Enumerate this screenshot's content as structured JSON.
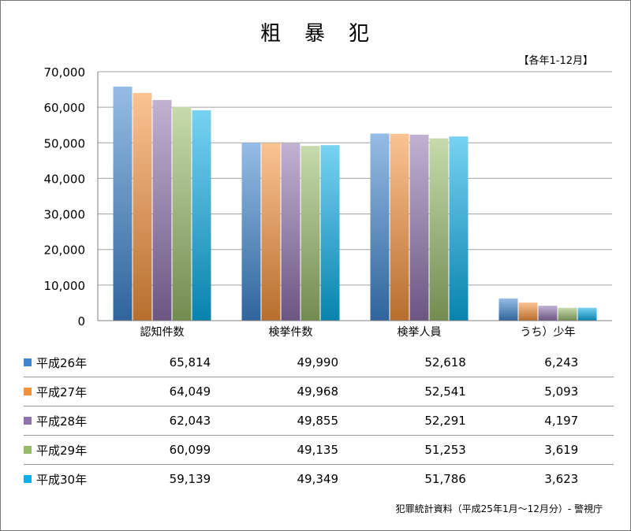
{
  "title": "粗　暴　犯",
  "period_note": "【各年1-12月】",
  "source": "犯罪統計資料（平成25年1月～12月分）- 警視庁",
  "chart_data": {
    "type": "bar",
    "categories": [
      "認知件数",
      "検挙件数",
      "検挙人員",
      "うち）少年"
    ],
    "ylim": [
      0,
      70000
    ],
    "yticks": [
      0,
      10000,
      20000,
      30000,
      40000,
      50000,
      60000,
      70000
    ],
    "ytick_labels": [
      "0",
      "10,000",
      "20,000",
      "30,000",
      "40,000",
      "50,000",
      "60,000",
      "70,000"
    ],
    "grid": true,
    "legend": "table-left",
    "series": [
      {
        "name": "平成26年",
        "color": "#3f86cf",
        "values": [
          65814,
          49990,
          52618,
          6243
        ],
        "labels": [
          "65,814",
          "49,990",
          "52,618",
          "6,243"
        ]
      },
      {
        "name": "平成27年",
        "color": "#f5923c",
        "values": [
          64049,
          49968,
          52541,
          5093
        ],
        "labels": [
          "64,049",
          "49,968",
          "52,541",
          "5,093"
        ]
      },
      {
        "name": "平成28年",
        "color": "#8e72ad",
        "values": [
          62043,
          49855,
          52291,
          4197
        ],
        "labels": [
          "62,043",
          "49,855",
          "52,291",
          "4,197"
        ]
      },
      {
        "name": "平成29年",
        "color": "#98bb6a",
        "values": [
          60099,
          49135,
          51253,
          3619
        ],
        "labels": [
          "60,099",
          "49,135",
          "51,253",
          "3,619"
        ]
      },
      {
        "name": "平成30年",
        "color": "#0aaee8",
        "values": [
          59139,
          49349,
          51786,
          3623
        ],
        "labels": [
          "59,139",
          "49,349",
          "51,786",
          "3,623"
        ]
      }
    ]
  }
}
